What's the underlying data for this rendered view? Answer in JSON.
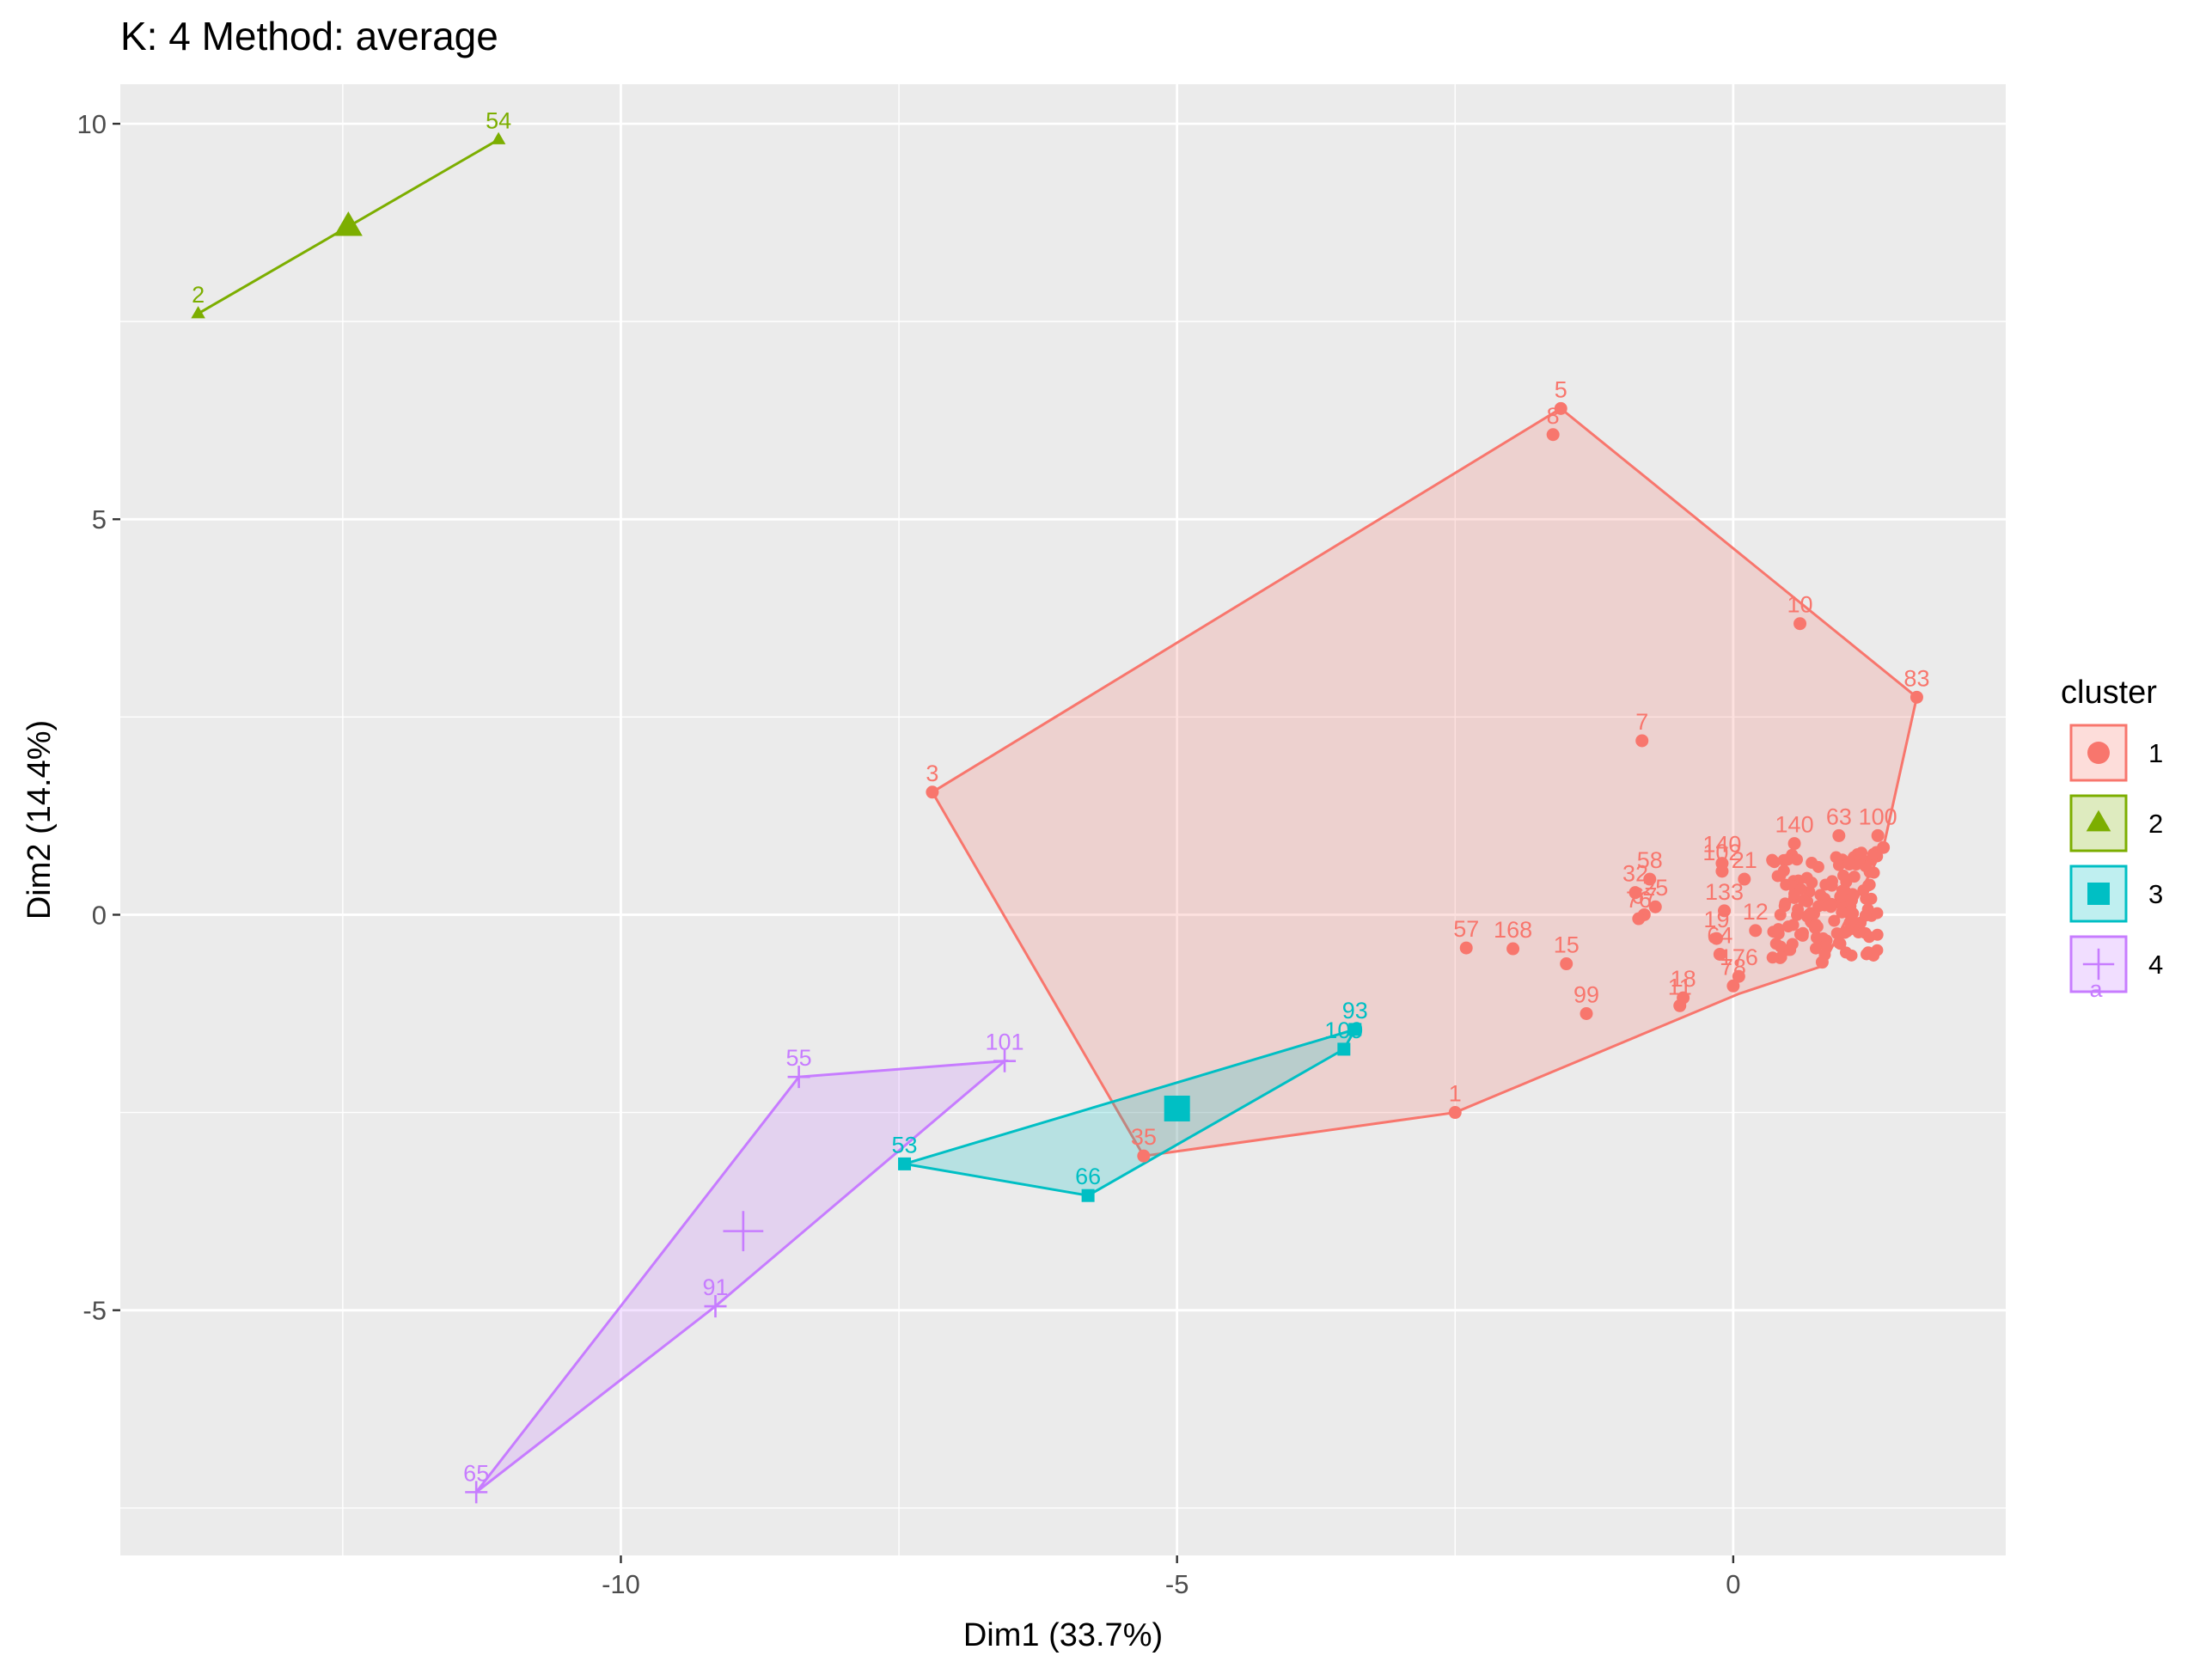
{
  "chart_data": {
    "type": "scatter",
    "title": "K: 4  Method: average",
    "xlabel": "Dim1 (33.7%)",
    "ylabel": "Dim2 (14.4%)",
    "xlim": [
      -14.5,
      2.45
    ],
    "ylim": [
      -8.1,
      10.5
    ],
    "x_ticks": [
      -10,
      -5,
      0
    ],
    "y_ticks": [
      -5,
      0,
      5,
      10
    ],
    "grid": true,
    "legend": {
      "title": "cluster",
      "position": "right",
      "entries": [
        {
          "label": "1",
          "shape": "circle"
        },
        {
          "label": "2",
          "shape": "triangle"
        },
        {
          "label": "3",
          "shape": "square"
        },
        {
          "label": "4",
          "shape": "cross"
        }
      ],
      "extra_label": "a"
    },
    "colors": {
      "1": "#F8766D",
      "2": "#7CAE00",
      "3": "#00BFC4",
      "4": "#C77CFF"
    },
    "series": [
      {
        "name": "1",
        "shape": "circle",
        "centroid": null,
        "hull": [
          [
            -1.55,
            6.4
          ],
          [
            1.65,
            2.75
          ],
          [
            1.35,
            0.85
          ],
          [
            0.8,
            -0.65
          ],
          [
            0.05,
            -1.0
          ],
          [
            -2.5,
            -2.5
          ],
          [
            -5.3,
            -3.05
          ],
          [
            -7.2,
            1.55
          ]
        ],
        "points": [
          {
            "x": -2.5,
            "y": -2.5,
            "label": "1"
          },
          {
            "x": -7.2,
            "y": 1.55,
            "label": "3"
          },
          {
            "x": -1.55,
            "y": 6.4,
            "label": "5"
          },
          {
            "x": -1.62,
            "y": 6.07,
            "label": "8"
          },
          {
            "x": -0.82,
            "y": 2.2,
            "label": "7"
          },
          {
            "x": 0.6,
            "y": 3.68,
            "label": "10"
          },
          {
            "x": 1.65,
            "y": 2.75,
            "label": "83"
          },
          {
            "x": -2.4,
            "y": -0.42,
            "label": "57"
          },
          {
            "x": -1.98,
            "y": -0.43,
            "label": "168"
          },
          {
            "x": -1.5,
            "y": -0.62,
            "label": "15"
          },
          {
            "x": -1.32,
            "y": -1.25,
            "label": "99"
          },
          {
            "x": -0.45,
            "y": -1.05,
            "label": "18"
          },
          {
            "x": -0.48,
            "y": -1.15,
            "label": "11"
          },
          {
            "x": -5.3,
            "y": -3.05,
            "label": "35"
          },
          {
            "x": -0.75,
            "y": 0.45,
            "label": "58"
          },
          {
            "x": -0.88,
            "y": 0.28,
            "label": "32"
          },
          {
            "x": -0.7,
            "y": 0.1,
            "label": "25"
          },
          {
            "x": -0.8,
            "y": 0.0,
            "label": "67"
          },
          {
            "x": -0.85,
            "y": -0.05,
            "label": "76"
          },
          {
            "x": -0.1,
            "y": 0.65,
            "label": "140"
          },
          {
            "x": 0.55,
            "y": 0.9,
            "label": "140"
          },
          {
            "x": 0.95,
            "y": 1.0,
            "label": "63"
          },
          {
            "x": 1.3,
            "y": 1.0,
            "label": "100"
          },
          {
            "x": -0.1,
            "y": 0.55,
            "label": "102"
          },
          {
            "x": 0.1,
            "y": 0.45,
            "label": "21"
          },
          {
            "x": -0.08,
            "y": 0.05,
            "label": "133"
          },
          {
            "x": -0.15,
            "y": -0.3,
            "label": "19"
          },
          {
            "x": -0.12,
            "y": -0.5,
            "label": "64"
          },
          {
            "x": 0.2,
            "y": -0.2,
            "label": "12"
          },
          {
            "x": 0.05,
            "y": -0.78,
            "label": "176"
          },
          {
            "x": 0.0,
            "y": -0.9,
            "label": "78"
          },
          {
            "x": 0.8,
            "y": -0.6,
            "label": ""
          },
          {
            "x": 1.35,
            "y": 0.85,
            "label": ""
          }
        ]
      },
      {
        "name": "2",
        "shape": "triangle",
        "centroid": [
          -12.45,
          8.7
        ],
        "hull": [
          [
            -13.8,
            7.6
          ],
          [
            -11.1,
            9.8
          ]
        ],
        "points": [
          {
            "x": -13.8,
            "y": 7.6,
            "label": "2"
          },
          {
            "x": -11.1,
            "y": 9.8,
            "label": "54"
          }
        ]
      },
      {
        "name": "3",
        "shape": "square",
        "centroid": [
          -5.0,
          -2.45
        ],
        "hull": [
          [
            -7.45,
            -3.15
          ],
          [
            -5.8,
            -3.55
          ],
          [
            -3.5,
            -1.7
          ],
          [
            -3.4,
            -1.45
          ]
        ],
        "points": [
          {
            "x": -7.45,
            "y": -3.15,
            "label": "53"
          },
          {
            "x": -5.8,
            "y": -3.55,
            "label": "66"
          },
          {
            "x": -3.5,
            "y": -1.7,
            "label": "109"
          },
          {
            "x": -3.4,
            "y": -1.45,
            "label": "93"
          }
        ]
      },
      {
        "name": "4",
        "shape": "cross",
        "centroid": [
          -8.9,
          -4.0
        ],
        "hull": [
          [
            -11.3,
            -7.3
          ],
          [
            -8.4,
            -2.05
          ],
          [
            -6.55,
            -1.85
          ],
          [
            -9.15,
            -4.95
          ]
        ],
        "points": [
          {
            "x": -11.3,
            "y": -7.3,
            "label": "65"
          },
          {
            "x": -9.15,
            "y": -4.95,
            "label": "91"
          },
          {
            "x": -8.4,
            "y": -2.05,
            "label": "55"
          },
          {
            "x": -6.55,
            "y": -1.85,
            "label": "101"
          }
        ]
      }
    ]
  }
}
